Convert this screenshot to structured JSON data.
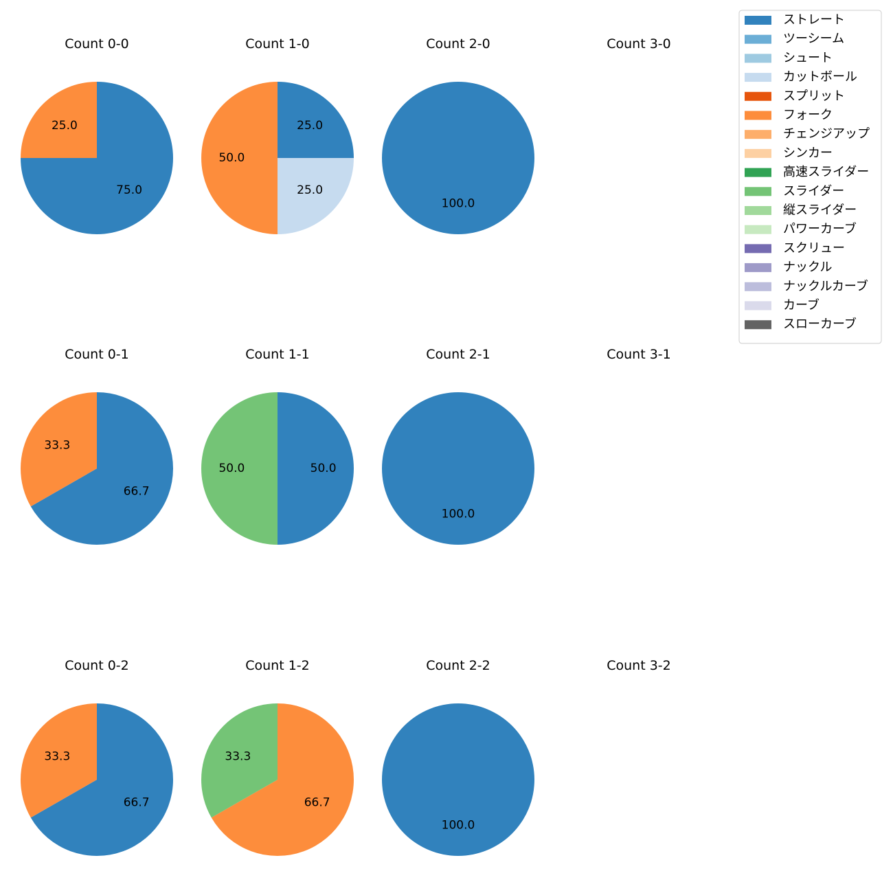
{
  "chart_data": {
    "type": "pie",
    "legend": {
      "placement": "top-right",
      "entries": [
        {
          "name": "ストレート",
          "color": "#3182bd"
        },
        {
          "name": "ツーシーム",
          "color": "#6baed6"
        },
        {
          "name": "シュート",
          "color": "#9ecae1"
        },
        {
          "name": "カットボール",
          "color": "#c6dbef"
        },
        {
          "name": "スプリット",
          "color": "#e6550d"
        },
        {
          "name": "フォーク",
          "color": "#fd8d3c"
        },
        {
          "name": "チェンジアップ",
          "color": "#fdae6b"
        },
        {
          "name": "シンカー",
          "color": "#fdd0a2"
        },
        {
          "name": "高速スライダー",
          "color": "#31a354"
        },
        {
          "name": "スライダー",
          "color": "#74c476"
        },
        {
          "name": "縦スライダー",
          "color": "#a1d99b"
        },
        {
          "name": "パワーカーブ",
          "color": "#c7e9c0"
        },
        {
          "name": "スクリュー",
          "color": "#756bb1"
        },
        {
          "name": "ナックル",
          "color": "#9e9ac8"
        },
        {
          "name": "ナックルカーブ",
          "color": "#bcbddc"
        },
        {
          "name": "カーブ",
          "color": "#dadaeb"
        },
        {
          "name": "スローカーブ",
          "color": "#636363"
        }
      ]
    },
    "panels": [
      {
        "title": "Count 0-0",
        "slices": [
          {
            "pitch": "ストレート",
            "value": 75.0,
            "label": "75.0"
          },
          {
            "pitch": "フォーク",
            "value": 25.0,
            "label": "25.0"
          }
        ]
      },
      {
        "title": "Count 1-0",
        "slices": [
          {
            "pitch": "ストレート",
            "value": 25.0,
            "label": "25.0"
          },
          {
            "pitch": "カットボール",
            "value": 25.0,
            "label": "25.0"
          },
          {
            "pitch": "フォーク",
            "value": 50.0,
            "label": "50.0"
          }
        ]
      },
      {
        "title": "Count 2-0",
        "slices": [
          {
            "pitch": "ストレート",
            "value": 100.0,
            "label": "100.0"
          }
        ]
      },
      {
        "title": "Count 3-0",
        "slices": []
      },
      {
        "title": "Count 0-1",
        "slices": [
          {
            "pitch": "ストレート",
            "value": 66.7,
            "label": "66.7"
          },
          {
            "pitch": "フォーク",
            "value": 33.3,
            "label": "33.3"
          }
        ]
      },
      {
        "title": "Count 1-1",
        "slices": [
          {
            "pitch": "ストレート",
            "value": 50.0,
            "label": "50.0"
          },
          {
            "pitch": "スライダー",
            "value": 50.0,
            "label": "50.0"
          }
        ]
      },
      {
        "title": "Count 2-1",
        "slices": [
          {
            "pitch": "ストレート",
            "value": 100.0,
            "label": "100.0"
          }
        ]
      },
      {
        "title": "Count 3-1",
        "slices": []
      },
      {
        "title": "Count 0-2",
        "slices": [
          {
            "pitch": "ストレート",
            "value": 66.7,
            "label": "66.7"
          },
          {
            "pitch": "フォーク",
            "value": 33.3,
            "label": "33.3"
          }
        ]
      },
      {
        "title": "Count 1-2",
        "slices": [
          {
            "pitch": "フォーク",
            "value": 66.7,
            "label": "66.7"
          },
          {
            "pitch": "スライダー",
            "value": 33.3,
            "label": "33.3"
          }
        ]
      },
      {
        "title": "Count 2-2",
        "slices": [
          {
            "pitch": "ストレート",
            "value": 100.0,
            "label": "100.0"
          }
        ]
      },
      {
        "title": "Count 3-2",
        "slices": []
      }
    ]
  }
}
